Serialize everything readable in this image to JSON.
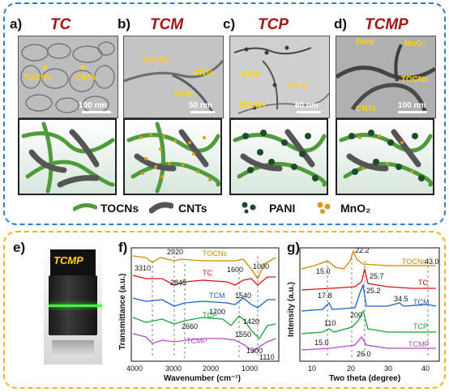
{
  "top": {
    "border_color": "#2f7fd0",
    "panels": [
      {
        "letter": "a)",
        "title": "TC",
        "labels": [
          "TOCNs",
          "CNTs"
        ],
        "scale": "100 nm"
      },
      {
        "letter": "b)",
        "title": "TCM",
        "labels": [
          "TOCNs",
          "CNTs",
          "MnO₂"
        ],
        "scale": "50 nm"
      },
      {
        "letter": "c)",
        "title": "TCP",
        "labels": [
          "PANI",
          "CNTs",
          "TOCNs"
        ],
        "scale": "60 nm"
      },
      {
        "letter": "d)",
        "title": "TCMP",
        "labels": [
          "PANI",
          "MnO₂",
          "TOCNs",
          "CNTs"
        ],
        "scale": "100 nm"
      }
    ],
    "legend": [
      "TOCNs",
      "CNTs",
      "PANI",
      "MnO₂"
    ]
  },
  "bottom": {
    "border_color": "#f0b522",
    "photo": {
      "letter": "e)",
      "label": "TCMP"
    },
    "ftir": {
      "letter": "f)",
      "xlabel": "Wavenumber (cm⁻¹)",
      "ylabel": "Transmittance (a.u.)",
      "xticks": [
        "4000",
        "3000",
        "2000",
        "1000"
      ],
      "series": [
        {
          "name": "TOCNs",
          "color": "#d08a00"
        },
        {
          "name": "TC",
          "color": "#e01010"
        },
        {
          "name": "TCM",
          "color": "#1e62c8"
        },
        {
          "name": "TCP",
          "color": "#18a23a"
        },
        {
          "name": "TCMP",
          "color": "#b44cc8"
        }
      ],
      "annotations": [
        "3310",
        "2920",
        "2845",
        "2660",
        "1700",
        "1600",
        "1540",
        "1420",
        "1550",
        "1300",
        "1110",
        "1000"
      ]
    },
    "xrd": {
      "letter": "g)",
      "xlabel": "Two theta (degree)",
      "ylabel": "Intensity (a.u.)",
      "xticks": [
        "10",
        "20",
        "30",
        "40"
      ],
      "series": [
        {
          "name": "TOCNs",
          "color": "#d08a00"
        },
        {
          "name": "TC",
          "color": "#e01010"
        },
        {
          "name": "TCM",
          "color": "#1e62c8"
        },
        {
          "name": "TCP",
          "color": "#18a23a"
        },
        {
          "name": "TCMP",
          "color": "#b44cc8"
        }
      ],
      "annotations": [
        "15.0",
        "22.2",
        "43.0",
        "25.7",
        "17.8",
        "25.2",
        "34.5",
        "110",
        "200",
        "15.0",
        "26.0"
      ]
    }
  }
}
